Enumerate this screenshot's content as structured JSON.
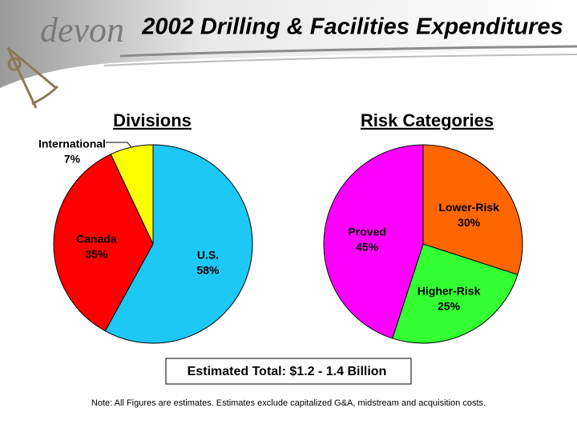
{
  "header": {
    "logo": "devon",
    "title": "2002 Drilling & Facilities Expenditures"
  },
  "chart_data": [
    {
      "type": "pie",
      "title": "Divisions",
      "categories": [
        "U.S.",
        "Canada",
        "International"
      ],
      "values": [
        58,
        35,
        7
      ],
      "value_labels": [
        "58%",
        "35%",
        "7%"
      ],
      "colors": [
        "#1ec8f5",
        "#ff0000",
        "#ffff00"
      ]
    },
    {
      "type": "pie",
      "title": "Risk Categories",
      "categories": [
        "Lower-Risk",
        "Higher-Risk",
        "Proved"
      ],
      "values": [
        30,
        25,
        45
      ],
      "value_labels": [
        "30%",
        "25%",
        "45%"
      ],
      "colors": [
        "#ff6600",
        "#33ff33",
        "#ff00ff"
      ]
    }
  ],
  "total_box": "Estimated Total:  $1.2 - 1.4 Billion",
  "note": "Note: All Figures are estimates.  Estimates exclude capitalized G&A, midstream and acquisition costs."
}
